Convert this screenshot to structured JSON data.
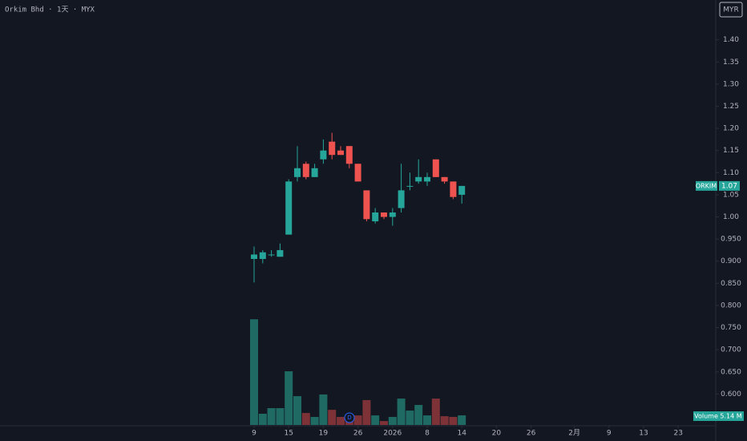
{
  "chart_data": {
    "type": "candlestick",
    "title": "Orkim Bhd · 1天 · MYX",
    "currency": "MYR",
    "symbol": "ORKIM",
    "x": [
      0,
      1,
      2,
      3,
      4,
      5,
      6,
      7,
      8,
      9,
      10,
      11,
      12,
      13,
      14,
      15,
      16,
      17,
      18,
      19,
      20,
      21,
      22,
      23,
      24
    ],
    "open": [
      0.905,
      0.905,
      0.915,
      0.91,
      0.96,
      1.09,
      1.12,
      1.09,
      1.13,
      1.17,
      1.15,
      1.16,
      1.12,
      1.06,
      0.99,
      1.01,
      1.0,
      1.02,
      1.07,
      1.08,
      1.08,
      1.13,
      1.09,
      1.08,
      1.05
    ],
    "high": [
      0.933,
      0.925,
      0.925,
      0.94,
      1.085,
      1.16,
      1.125,
      1.12,
      1.175,
      1.19,
      1.16,
      1.16,
      1.12,
      1.06,
      1.02,
      1.01,
      1.02,
      1.12,
      1.1,
      1.13,
      1.1,
      1.13,
      1.09,
      1.08,
      1.07
    ],
    "low": [
      0.852,
      0.895,
      0.91,
      0.91,
      0.96,
      1.08,
      1.085,
      1.09,
      1.12,
      1.13,
      1.14,
      1.11,
      1.08,
      0.99,
      0.985,
      0.995,
      0.98,
      1.01,
      1.06,
      1.075,
      1.07,
      1.09,
      1.075,
      1.04,
      1.03
    ],
    "close": [
      0.915,
      0.92,
      0.915,
      0.925,
      1.08,
      1.11,
      1.09,
      1.11,
      1.15,
      1.14,
      1.14,
      1.12,
      1.08,
      0.995,
      1.01,
      1.0,
      1.01,
      1.06,
      1.07,
      1.09,
      1.09,
      1.09,
      1.08,
      1.045,
      1.07
    ],
    "up_color": "#26a69a",
    "down_color": "#ef5350",
    "volume": {
      "name": "Volume",
      "values": [
        56.5,
        6.0,
        9.0,
        9.0,
        28.7,
        15.4,
        6.4,
        4.3,
        16.3,
        8.1,
        4.3,
        5.1,
        5.1,
        13.3,
        5.1,
        2.1,
        4.3,
        14.1,
        7.7,
        10.7,
        5.1,
        14.1,
        4.7,
        4.3,
        5.14
      ],
      "last_label": "5.14 M",
      "up_color": "#1f6a63",
      "down_color": "#7c3236",
      "ylim": [
        0,
        60
      ]
    },
    "ylim": [
      0.53,
      1.49
    ],
    "yticks": [
      {
        "value": 1.4,
        "label": "1.40"
      },
      1.35,
      {
        "value": 1.3,
        "label": "1.30"
      },
      1.25,
      {
        "value": 1.2,
        "label": "1.20"
      },
      1.15,
      {
        "value": 1.1,
        "label": "1.10"
      },
      1.05,
      {
        "value": 1.0,
        "label": "1.00"
      },
      {
        "value": 0.95,
        "label": "0.950"
      },
      {
        "value": 0.9,
        "label": "0.900"
      },
      {
        "value": 0.85,
        "label": "0.850"
      },
      {
        "value": 0.8,
        "label": "0.800"
      },
      {
        "value": 0.75,
        "label": "0.750"
      },
      {
        "value": 0.7,
        "label": "0.700"
      },
      {
        "value": 0.65,
        "label": "0.650"
      },
      {
        "value": 0.6,
        "label": "0.600"
      }
    ],
    "xticks": [
      {
        "value": 0,
        "label": "9"
      },
      {
        "value": 4,
        "label": "15"
      },
      {
        "value": 8,
        "label": "19"
      },
      {
        "value": 12,
        "label": "26"
      },
      {
        "value": 16,
        "label": "2026"
      },
      {
        "value": 20,
        "label": "8"
      },
      {
        "value": 24,
        "label": "14"
      },
      {
        "value": 28,
        "label": "20"
      },
      {
        "value": 32,
        "label": "26"
      },
      {
        "value": 37,
        "label": "2月"
      },
      {
        "value": 41,
        "label": "9"
      },
      {
        "value": 45,
        "label": "13"
      },
      {
        "value": 49,
        "label": "23"
      }
    ]
  }
}
